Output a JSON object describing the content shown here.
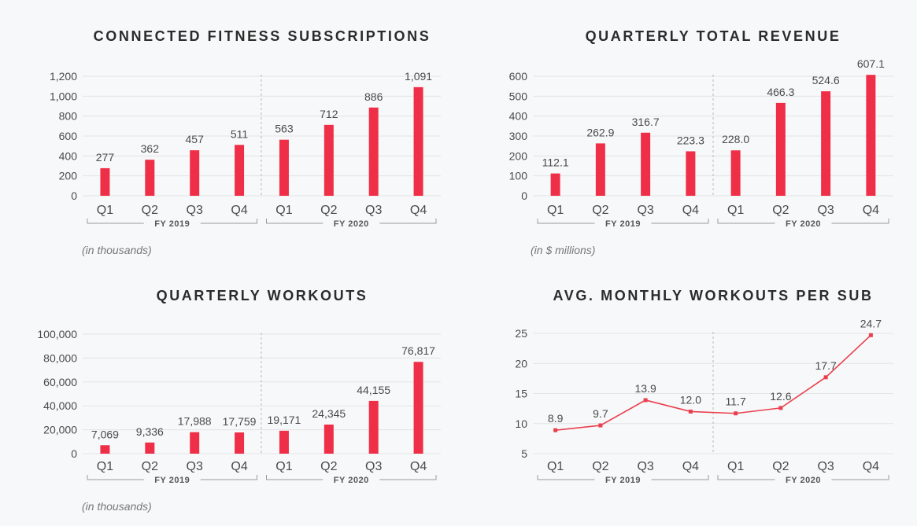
{
  "colors": {
    "bar": "#ef2f48",
    "line": "#e9404f",
    "grid": "#e3e4e6",
    "divider": "#b8b8b8",
    "text": "#4a4a4a",
    "title": "#2b2b2b",
    "background": "#f7f8f9"
  },
  "chart_data": [
    {
      "type": "bar",
      "title": "CONNECTED FITNESS SUBSCRIPTIONS",
      "note": "(in thousands)",
      "categories": [
        "Q1",
        "Q2",
        "Q3",
        "Q4",
        "Q1",
        "Q2",
        "Q3",
        "Q4"
      ],
      "groups": [
        {
          "label": "FY 2019",
          "count": 4
        },
        {
          "label": "FY 2020",
          "count": 4
        }
      ],
      "values": [
        277,
        362,
        457,
        511,
        563,
        712,
        886,
        1091
      ],
      "value_labels": [
        "277",
        "362",
        "457",
        "511",
        "563",
        "712",
        "886",
        "1,091"
      ],
      "y_ticks": [
        0,
        200,
        400,
        600,
        800,
        1000,
        1200
      ],
      "y_tick_labels": [
        "0",
        "200",
        "400",
        "600",
        "800",
        "1,000",
        "1,200"
      ],
      "ylim": [
        0,
        1200
      ],
      "grid": true,
      "legend": "none"
    },
    {
      "type": "bar",
      "title": "QUARTERLY TOTAL REVENUE",
      "note": "(in $ millions)",
      "categories": [
        "Q1",
        "Q2",
        "Q3",
        "Q4",
        "Q1",
        "Q2",
        "Q3",
        "Q4"
      ],
      "groups": [
        {
          "label": "FY 2019",
          "count": 4
        },
        {
          "label": "FY 2020",
          "count": 4
        }
      ],
      "values": [
        112.1,
        262.9,
        316.7,
        223.3,
        228.0,
        466.3,
        524.6,
        607.1
      ],
      "value_labels": [
        "112.1",
        "262.9",
        "316.7",
        "223.3",
        "228.0",
        "466.3",
        "524.6",
        "607.1"
      ],
      "y_ticks": [
        0,
        100,
        200,
        300,
        400,
        500,
        600
      ],
      "y_tick_labels": [
        "0",
        "100",
        "200",
        "300",
        "400",
        "500",
        "600"
      ],
      "ylim": [
        0,
        600
      ],
      "grid": true,
      "legend": "none"
    },
    {
      "type": "bar",
      "title": "QUARTERLY WORKOUTS",
      "note": "(in thousands)",
      "categories": [
        "Q1",
        "Q2",
        "Q3",
        "Q4",
        "Q1",
        "Q2",
        "Q3",
        "Q4"
      ],
      "groups": [
        {
          "label": "FY 2019",
          "count": 4
        },
        {
          "label": "FY 2020",
          "count": 4
        }
      ],
      "values": [
        7069,
        9336,
        17988,
        17759,
        19171,
        24345,
        44155,
        76817
      ],
      "value_labels": [
        "7,069",
        "9,336",
        "17,988",
        "17,759",
        "19,171",
        "24,345",
        "44,155",
        "76,817"
      ],
      "y_ticks": [
        0,
        20000,
        40000,
        60000,
        80000,
        100000
      ],
      "y_tick_labels": [
        "0",
        "20,000",
        "40,000",
        "60,000",
        "80,000",
        "100,000"
      ],
      "ylim": [
        0,
        100000
      ],
      "grid": true,
      "legend": "none"
    },
    {
      "type": "line",
      "title": "AVG. MONTHLY WORKOUTS PER SUB",
      "note": "",
      "categories": [
        "Q1",
        "Q2",
        "Q3",
        "Q4",
        "Q1",
        "Q2",
        "Q3",
        "Q4"
      ],
      "groups": [
        {
          "label": "FY 2019",
          "count": 4
        },
        {
          "label": "FY 2020",
          "count": 4
        }
      ],
      "values": [
        8.9,
        9.7,
        13.9,
        12.0,
        11.7,
        12.6,
        17.7,
        24.7
      ],
      "value_labels": [
        "8.9",
        "9.7",
        "13.9",
        "12.0",
        "11.7",
        "12.6",
        "17.7",
        "24.7"
      ],
      "y_ticks": [
        5,
        10,
        15,
        20,
        25
      ],
      "y_tick_labels": [
        "5",
        "10",
        "15",
        "20",
        "25"
      ],
      "ylim": [
        5,
        25
      ],
      "grid": true,
      "legend": "none"
    }
  ]
}
